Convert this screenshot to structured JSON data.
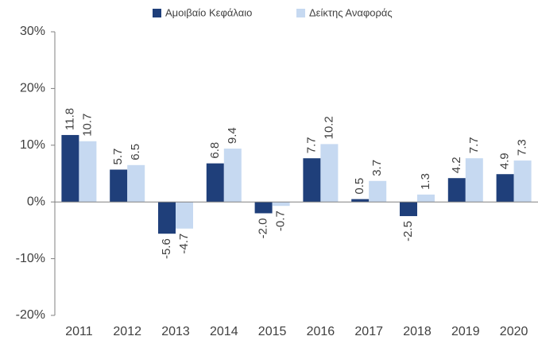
{
  "chart_data": {
    "type": "bar",
    "categories": [
      "2011",
      "2012",
      "2013",
      "2014",
      "2015",
      "2016",
      "2017",
      "2018",
      "2019",
      "2020"
    ],
    "series": [
      {
        "name": "Αμοιβαίο Κεφάλαιο",
        "color": "#1f3f7a",
        "values": [
          11.8,
          5.7,
          -5.6,
          6.8,
          -2.0,
          7.7,
          0.5,
          -2.5,
          4.2,
          4.9
        ],
        "value_labels": [
          "11.8",
          "5.7",
          "-5.6",
          "6.8",
          "-2.0",
          "7.7",
          "0.5",
          "-2.5",
          "4.2",
          "4.9"
        ]
      },
      {
        "name": "Δείκτης Αναφοράς",
        "color": "#c6d9f1",
        "values": [
          10.7,
          6.5,
          -4.7,
          9.4,
          -0.7,
          10.2,
          3.7,
          1.3,
          7.7,
          7.3
        ],
        "value_labels": [
          "10.7",
          "6.5",
          "-4.7",
          "9.4",
          "-0.7",
          "10.2",
          "3.7",
          "1.3",
          "7.7",
          "7.3"
        ]
      }
    ],
    "ylim": [
      -20,
      30
    ],
    "yticks": [
      {
        "value": -20,
        "label": "-20%"
      },
      {
        "value": -10,
        "label": "-10%"
      },
      {
        "value": 0,
        "label": "0%"
      },
      {
        "value": 10,
        "label": "10%"
      },
      {
        "value": 20,
        "label": "20%"
      },
      {
        "value": 30,
        "label": "30%"
      }
    ],
    "legend": "top"
  }
}
